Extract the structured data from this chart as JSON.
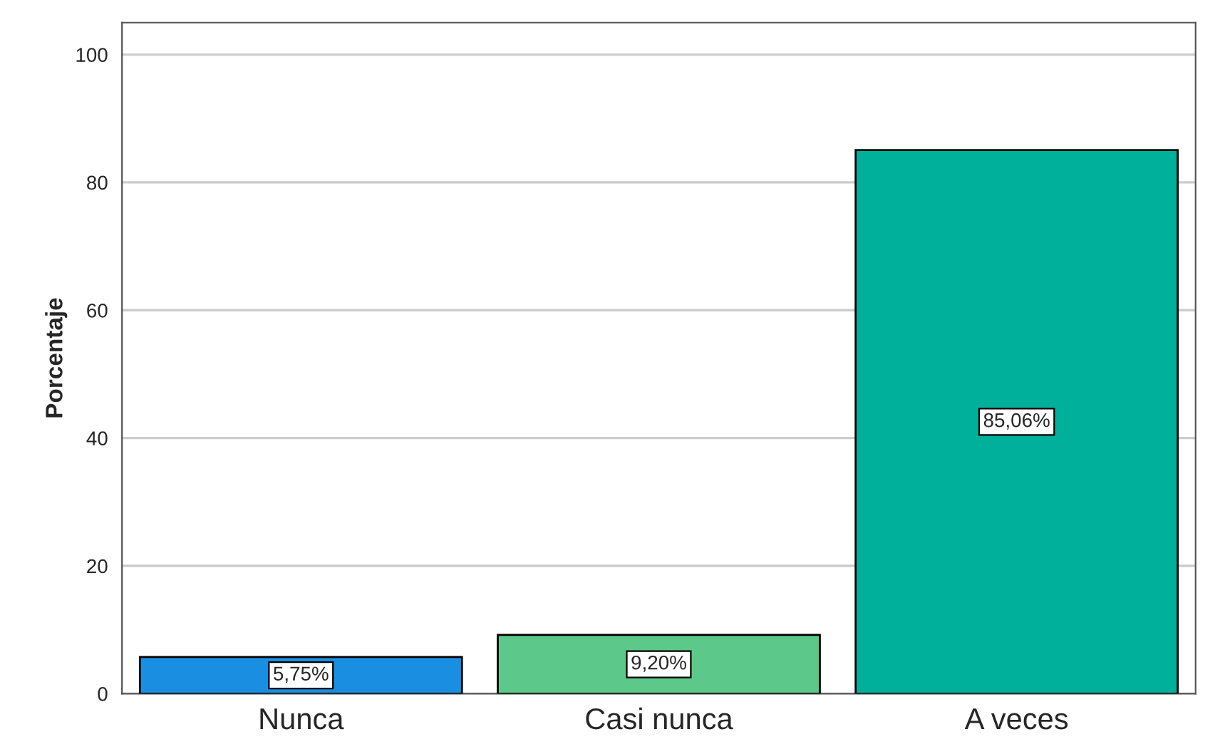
{
  "chart_data": {
    "type": "bar",
    "ylabel": "Porcentaje",
    "categories": [
      "Nunca",
      "Casi nunca",
      "A veces"
    ],
    "values": [
      5.75,
      9.2,
      85.06
    ],
    "value_labels": [
      "5,75%",
      "9,20%",
      "85,06%"
    ],
    "colors": [
      "#1a8ee0",
      "#5cc98a",
      "#00b09a"
    ],
    "ylim": [
      0,
      105
    ],
    "yticks": [
      0,
      20,
      40,
      60,
      80,
      100
    ],
    "grid": "y",
    "legend": false
  }
}
